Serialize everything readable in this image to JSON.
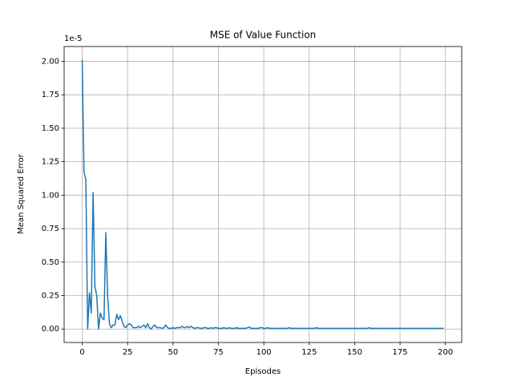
{
  "chart_data": {
    "type": "line",
    "title": "MSE of Value Function",
    "x_label": "Episodes",
    "y_label": "Mean Squared Error",
    "y_offset_text": "1e-5",
    "color": "#1f77b4",
    "grid": true,
    "x": [
      0,
      1,
      2,
      3,
      4,
      5,
      6,
      7,
      8,
      9,
      10,
      11,
      12,
      13,
      14,
      15,
      16,
      17,
      18,
      19,
      20,
      21,
      22,
      23,
      24,
      25,
      26,
      27,
      28,
      29,
      30,
      31,
      32,
      33,
      34,
      35,
      36,
      37,
      38,
      39,
      40,
      41,
      42,
      43,
      44,
      45,
      46,
      47,
      48,
      49,
      50,
      51,
      52,
      53,
      54,
      55,
      56,
      57,
      58,
      59,
      60,
      61,
      62,
      63,
      64,
      65,
      66,
      67,
      68,
      69,
      70,
      71,
      72,
      73,
      74,
      75,
      76,
      77,
      78,
      79,
      80,
      81,
      82,
      83,
      84,
      85,
      86,
      87,
      88,
      89,
      90,
      91,
      92,
      93,
      94,
      95,
      96,
      97,
      98,
      99,
      100,
      101,
      102,
      103,
      104,
      105,
      106,
      107,
      108,
      109,
      110,
      111,
      112,
      113,
      114,
      115,
      116,
      117,
      118,
      119,
      120,
      121,
      122,
      123,
      124,
      125,
      126,
      127,
      128,
      129,
      130,
      131,
      132,
      133,
      134,
      135,
      136,
      137,
      138,
      139,
      140,
      141,
      142,
      143,
      144,
      145,
      146,
      147,
      148,
      149,
      150,
      151,
      152,
      153,
      154,
      155,
      156,
      157,
      158,
      159,
      160,
      161,
      162,
      163,
      164,
      165,
      166,
      167,
      168,
      169,
      170,
      171,
      172,
      173,
      174,
      175,
      176,
      177,
      178,
      179,
      180,
      181,
      182,
      183,
      184,
      185,
      186,
      187,
      188,
      189,
      190,
      191,
      192,
      193,
      194,
      195,
      196,
      197,
      198,
      199
    ],
    "values": [
      2.01,
      1.17,
      1.12,
      0,
      0.27,
      0.12,
      1.02,
      0.32,
      0.25,
      0,
      0.12,
      0.08,
      0.07,
      0.72,
      0.25,
      0.04,
      0.01,
      0.03,
      0.03,
      0.11,
      0.07,
      0.1,
      0.06,
      0.02,
      0.01,
      0.03,
      0.04,
      0.03,
      0.01,
      0.01,
      0.01,
      0.02,
      0.01,
      0.02,
      0.03,
      0.01,
      0.04,
      0.01,
      0,
      0.02,
      0.03,
      0.01,
      0.01,
      0.01,
      0.005,
      0.01,
      0.03,
      0.01,
      0.005,
      0.005,
      0.01,
      0.005,
      0.01,
      0.01,
      0.01,
      0.02,
      0.01,
      0.01,
      0.02,
      0.01,
      0.02,
      0.01,
      0.005,
      0.01,
      0.01,
      0.005,
      0.005,
      0.01,
      0.01,
      0.005,
      0.005,
      0.01,
      0.005,
      0.01,
      0.01,
      0.005,
      0.005,
      0.005,
      0.01,
      0.005,
      0.005,
      0.01,
      0.005,
      0.005,
      0.005,
      0.01,
      0.005,
      0.005,
      0.005,
      0.005,
      0.005,
      0.01,
      0.015,
      0.005,
      0.005,
      0.005,
      0.005,
      0.005,
      0.01,
      0.01,
      0.005,
      0.005,
      0.01,
      0.005,
      0.005,
      0.005,
      0.005,
      0.005,
      0.005,
      0.005,
      0.005,
      0.005,
      0.005,
      0.005,
      0.01,
      0.005,
      0.005,
      0.005,
      0.005,
      0.005,
      0.005,
      0.005,
      0.005,
      0.005,
      0.005,
      0.005,
      0.005,
      0.005,
      0.005,
      0.01,
      0.005,
      0.005,
      0.005,
      0.005,
      0.005,
      0.005,
      0.005,
      0.005,
      0.005,
      0.005,
      0.005,
      0.005,
      0.005,
      0.005,
      0.005,
      0.005,
      0.005,
      0.005,
      0.005,
      0.005,
      0.005,
      0.005,
      0.005,
      0.005,
      0.005,
      0.005,
      0.005,
      0.005,
      0.01,
      0.005,
      0.005,
      0.005,
      0.005,
      0.005,
      0.005,
      0.005,
      0.005,
      0.005,
      0.005,
      0.005,
      0.005,
      0.005,
      0.005,
      0.005,
      0.005,
      0.005,
      0.005,
      0.005,
      0.005,
      0.005,
      0.005,
      0.005,
      0.005,
      0.005,
      0.005,
      0.005,
      0.005,
      0.005,
      0.005,
      0.005,
      0.005,
      0.005,
      0.005,
      0.005,
      0.005,
      0.005,
      0.005,
      0.005,
      0.005,
      0.005
    ],
    "xlim": [
      -9.95,
      208.95
    ],
    "xticks": [
      0,
      25,
      50,
      75,
      100,
      125,
      150,
      175,
      200
    ],
    "ylim": [
      -0.1005,
      2.1105
    ],
    "yticks": [
      {
        "value": 0,
        "label": "0.00"
      },
      {
        "value": 0.25,
        "label": "0.25"
      },
      {
        "value": 0.5,
        "label": "0.50"
      },
      {
        "value": 0.75,
        "label": "0.75"
      },
      {
        "value": 1,
        "label": "1.00"
      },
      {
        "value": 1.25,
        "label": "1.25"
      },
      {
        "value": 1.5,
        "label": "1.50"
      },
      {
        "value": 1.75,
        "label": "1.75"
      },
      {
        "value": 2,
        "label": "2.00"
      }
    ]
  }
}
